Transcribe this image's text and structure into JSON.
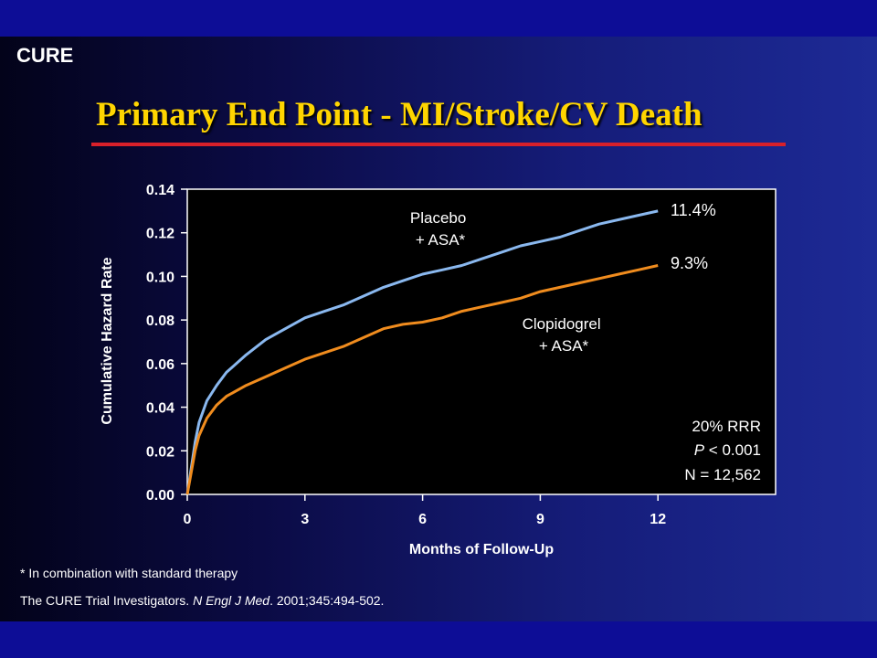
{
  "slide": {
    "logo": "CURE",
    "title": "Primary End Point - MI/Stroke/CV Death",
    "footnote": "* In combination with standard therapy",
    "citation": {
      "authors": "The CURE Trial Investigators. ",
      "journal": "N Engl J Med",
      "details": ". 2001;345:494-502."
    }
  },
  "colors": {
    "title": "#ffd500",
    "title_rule": "#d8202a",
    "placebo_line": "#8ab8ef",
    "clopidogrel_line": "#f08c1e",
    "plot_background": "#000000"
  },
  "chart_data": {
    "type": "line",
    "title": "Primary End Point - MI/Stroke/CV Death",
    "xlabel": "Months of Follow-Up",
    "ylabel": "Cumulative Hazard Rate",
    "xlim": [
      0,
      15
    ],
    "ylim": [
      0,
      0.14
    ],
    "x_ticks": [
      0,
      3,
      6,
      9,
      12
    ],
    "x_tick_labels": [
      "0",
      "3",
      "6",
      "9",
      "12"
    ],
    "y_ticks": [
      0,
      0.02,
      0.04,
      0.06,
      0.08,
      0.1,
      0.12,
      0.14
    ],
    "y_tick_labels": [
      "0.00",
      "0.02",
      "0.04",
      "0.06",
      "0.08",
      "0.10",
      "0.12",
      "0.14"
    ],
    "grid": false,
    "series": [
      {
        "name": "Placebo + ASA*",
        "label_lines": [
          "Placebo",
          "+ ASA*"
        ],
        "color": "#8ab8ef",
        "end_label": "11.4%",
        "x": [
          0,
          0.1,
          0.2,
          0.3,
          0.5,
          0.75,
          1,
          1.5,
          2,
          2.5,
          3,
          3.5,
          4,
          4.5,
          5,
          5.5,
          6,
          6.5,
          7,
          7.5,
          8,
          8.5,
          9,
          9.5,
          10,
          10.5,
          11,
          11.5,
          12
        ],
        "y": [
          0,
          0.012,
          0.024,
          0.033,
          0.043,
          0.05,
          0.056,
          0.064,
          0.071,
          0.076,
          0.081,
          0.084,
          0.087,
          0.091,
          0.095,
          0.098,
          0.101,
          0.103,
          0.105,
          0.108,
          0.111,
          0.114,
          0.116,
          0.118,
          0.121,
          0.124,
          0.126,
          0.128,
          0.13
        ]
      },
      {
        "name": "Clopidogrel + ASA*",
        "label_lines": [
          "Clopidogrel",
          "+ ASA*"
        ],
        "color": "#f08c1e",
        "end_label": "9.3%",
        "x": [
          0,
          0.1,
          0.2,
          0.3,
          0.5,
          0.75,
          1,
          1.5,
          2,
          2.5,
          3,
          3.5,
          4,
          4.5,
          5,
          5.5,
          6,
          6.5,
          7,
          7.5,
          8,
          8.5,
          9,
          9.5,
          10,
          10.5,
          11,
          11.5,
          12
        ],
        "y": [
          0,
          0.01,
          0.02,
          0.027,
          0.035,
          0.041,
          0.045,
          0.05,
          0.054,
          0.058,
          0.062,
          0.065,
          0.068,
          0.072,
          0.076,
          0.078,
          0.079,
          0.081,
          0.084,
          0.086,
          0.088,
          0.09,
          0.093,
          0.095,
          0.097,
          0.099,
          0.101,
          0.103,
          0.105
        ]
      }
    ],
    "stats_box": {
      "rrr": "20% RRR",
      "p_label": "P",
      "p_value": " < 0.001",
      "n": "N = 12,562"
    }
  }
}
